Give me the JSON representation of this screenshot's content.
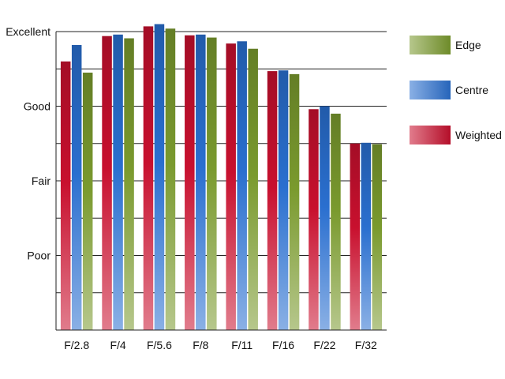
{
  "chart_data": {
    "type": "bar",
    "title": "",
    "xlabel": "",
    "ylabel": "",
    "categories": [
      "F/2.8",
      "F/4",
      "F/5.6",
      "F/8",
      "F/11",
      "F/16",
      "F/22",
      "F/32"
    ],
    "series": [
      {
        "name": "Weighted",
        "color": "#c8102e",
        "values": [
          3.6,
          3.94,
          4.07,
          3.95,
          3.84,
          3.47,
          2.96,
          2.5
        ]
      },
      {
        "name": "Centre",
        "color": "#2a6fcf",
        "values": [
          3.82,
          3.96,
          4.1,
          3.96,
          3.87,
          3.48,
          3.0,
          2.51
        ]
      },
      {
        "name": "Edge",
        "color": "#7a9a2e",
        "values": [
          3.45,
          3.91,
          4.04,
          3.92,
          3.77,
          3.43,
          2.9,
          2.49
        ]
      }
    ],
    "ylim": [
      0,
      4
    ],
    "y_ticks": [
      {
        "value": 1,
        "label": "Poor"
      },
      {
        "value": 2,
        "label": "Fair"
      },
      {
        "value": 3,
        "label": "Good"
      },
      {
        "value": 4,
        "label": "Excellent"
      }
    ],
    "legend": {
      "placement": "right",
      "order": [
        "Edge",
        "Centre",
        "Weighted"
      ]
    },
    "grid": true
  }
}
